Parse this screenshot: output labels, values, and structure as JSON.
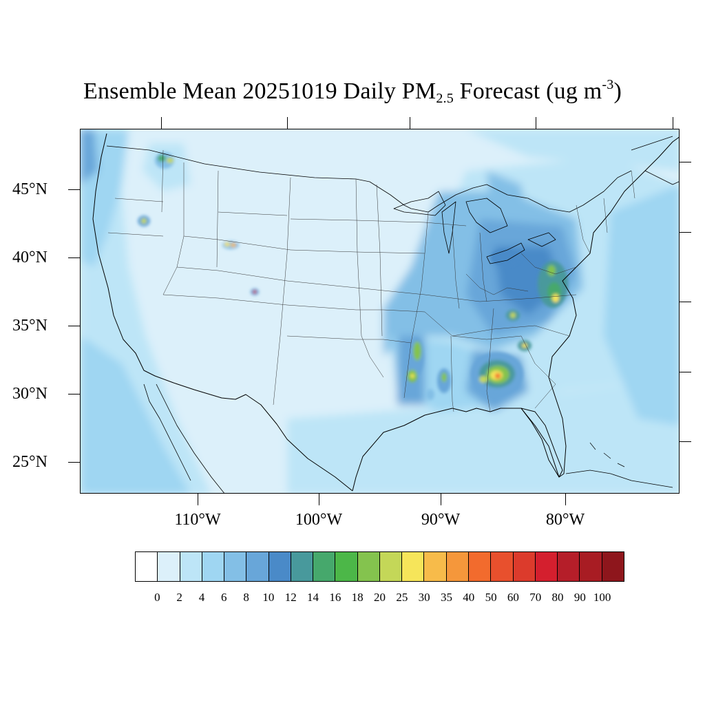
{
  "title": {
    "main": "Ensemble Mean 20251019 Daily PM",
    "subscript": "2.5",
    "after": " Forecast (ug m",
    "superscript": "-3",
    "close": ")"
  },
  "map": {
    "projection": "lambert-conformal",
    "region": "Contiguous United States",
    "lat_labels": [
      "45°N",
      "40°N",
      "35°N",
      "30°N",
      "25°N"
    ],
    "lon_labels": [
      "110°W",
      "100°W",
      "90°W",
      "80°W"
    ],
    "hotspots": [
      "Northern Idaho / western Montana",
      "Central Idaho",
      "Western Wyoming",
      "Southern Colorado",
      "Arkansas / Louisiana (Mississippi valley)",
      "Southeastern Alabama / southwestern Georgia",
      "Virginia / Maryland",
      "Western North Carolina",
      "Tennessee / Kentucky"
    ]
  },
  "colorbar": {
    "labels": [
      "0",
      "2",
      "4",
      "6",
      "8",
      "10",
      "12",
      "14",
      "16",
      "18",
      "20",
      "25",
      "30",
      "35",
      "40",
      "50",
      "60",
      "70",
      "80",
      "90",
      "100"
    ],
    "colors": [
      "#ffffff",
      "#dcf0fa",
      "#bde5f7",
      "#9fd6f2",
      "#83bfe6",
      "#68a6d9",
      "#4a8ac8",
      "#48999c",
      "#46a86c",
      "#4cb748",
      "#84c34e",
      "#c4d758",
      "#f6e55a",
      "#f7bb4a",
      "#f5973b",
      "#f26b2d",
      "#e8502d",
      "#dc3b2c",
      "#d41f2e",
      "#b51e29",
      "#a81c23",
      "#8e161c"
    ]
  }
}
